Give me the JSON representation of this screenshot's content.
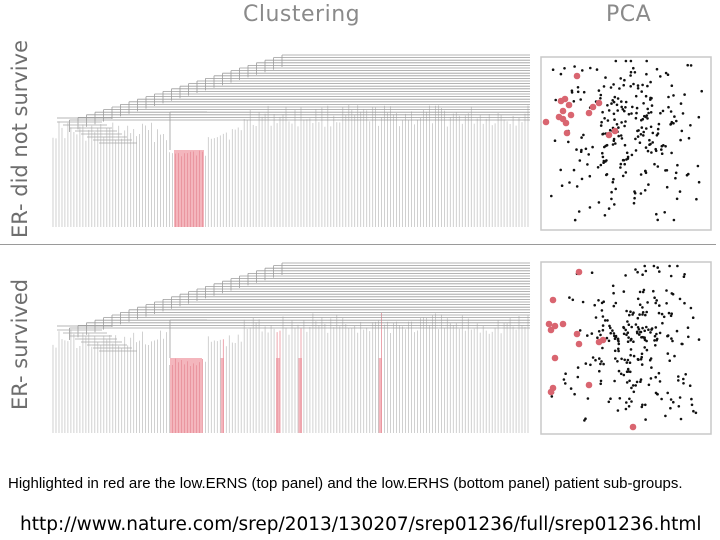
{
  "columns": {
    "clustering": "Clustering",
    "pca": "PCA"
  },
  "rows": [
    {
      "label": "ER- did not survive"
    },
    {
      "label": "ER- survived"
    }
  ],
  "colors": {
    "highlight": "#f2a9b1",
    "highlight_dot": "#d96570",
    "branch": "#c4c4c4",
    "point": "#111111"
  },
  "caption": "Highlighted in red are the low.ERNS (top panel) and the low.ERHS (bottom panel) patient sub-groups.",
  "url": "http://www.nature.com/srep/2013/130207/srep01236/full/srep01236.html"
}
